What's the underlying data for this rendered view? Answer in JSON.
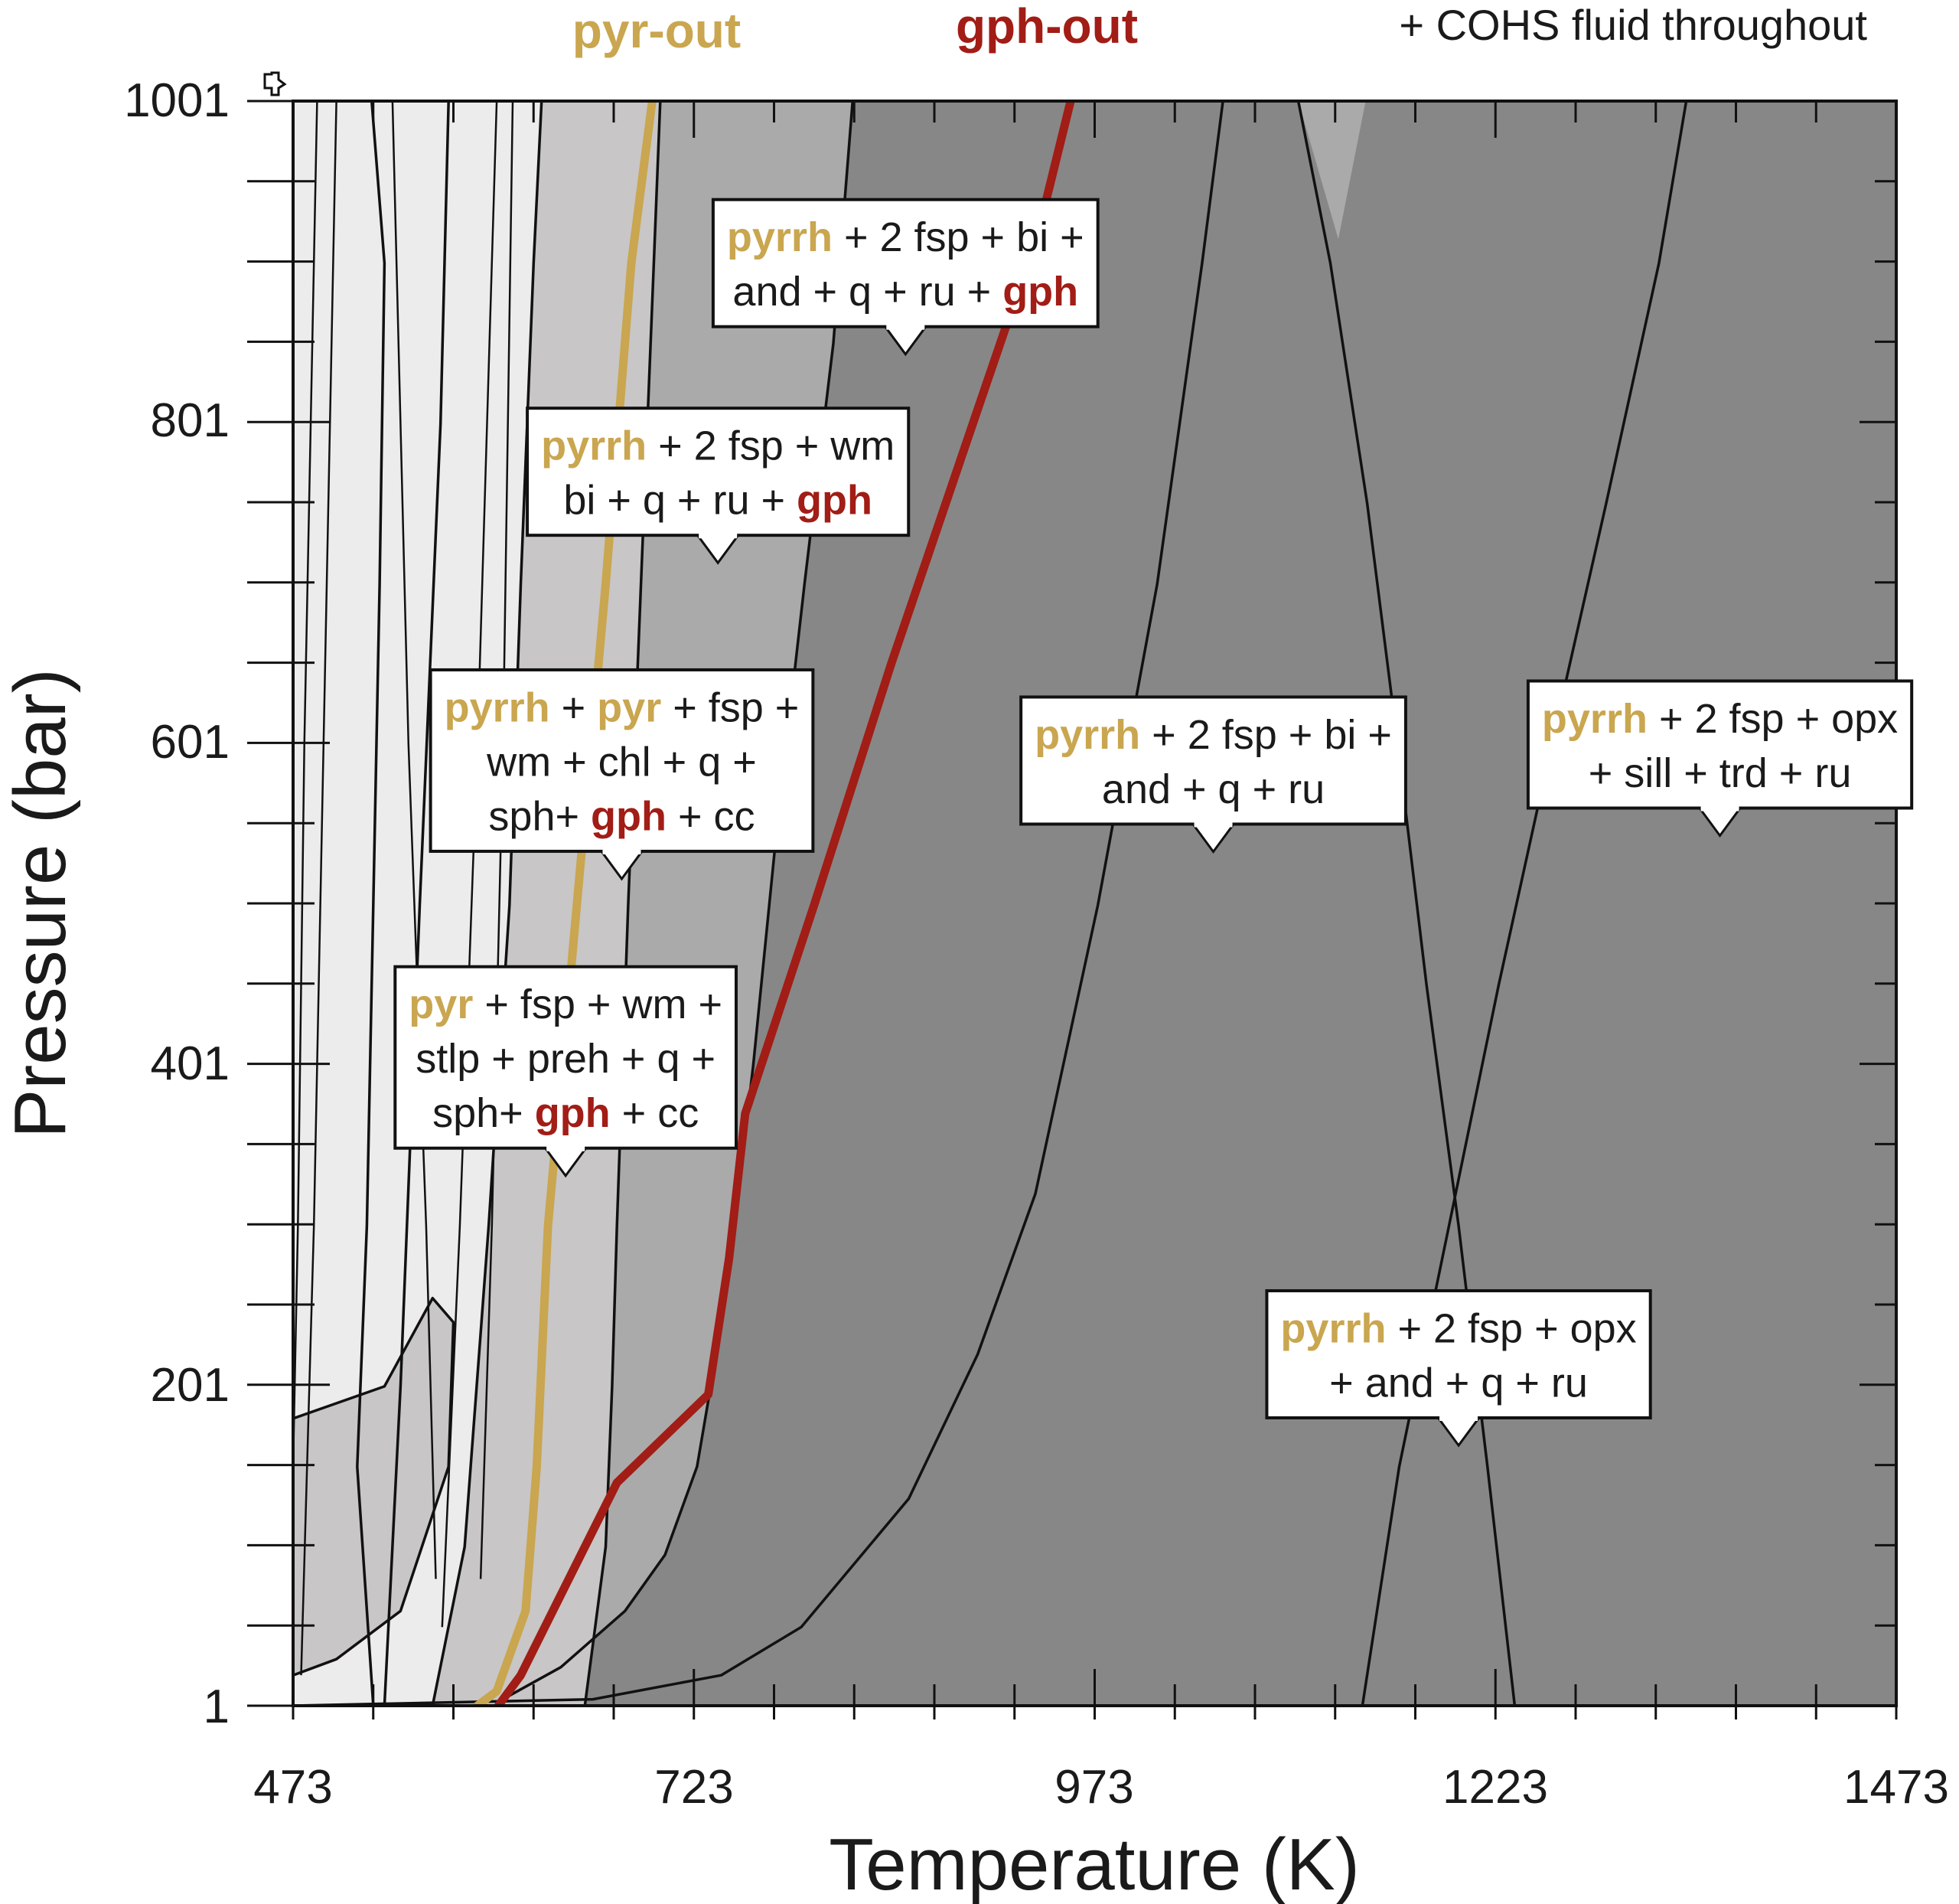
{
  "colors": {
    "pyrite": "#c9a64f",
    "graphite": "#a11d16",
    "field_light": "#ececec",
    "field_mid": "#c8c6c6",
    "field_midgray": "#aaaaaa",
    "field_dark": "#878787",
    "line": "#111111"
  },
  "top_note": "+ COHS fluid throughout",
  "chart_data": {
    "type": "phase-diagram",
    "title": "",
    "xlabel": "Temperature (K)",
    "ylabel": "Pressure (bar)",
    "xlim": [
      473,
      1473
    ],
    "ylim": [
      1,
      1001
    ],
    "xticks": [
      "473",
      "723",
      "973",
      "1223",
      "1473"
    ],
    "yticks": [
      "1",
      "201",
      "401",
      "601",
      "801",
      "1001"
    ],
    "grid": false,
    "series": [
      {
        "name": "pyr-out",
        "color": "#c9a64f",
        "points": [
          [
            588,
            1
          ],
          [
            600,
            10
          ],
          [
            618,
            60
          ],
          [
            625,
            150
          ],
          [
            632,
            300
          ],
          [
            650,
            500
          ],
          [
            668,
            700
          ],
          [
            684,
            900
          ],
          [
            697,
            1001
          ]
        ]
      },
      {
        "name": "gph-out",
        "color": "#a11d16",
        "points": [
          [
            601,
            1
          ],
          [
            615,
            20
          ],
          [
            645,
            80
          ],
          [
            675,
            140
          ],
          [
            732,
            195
          ],
          [
            745,
            280
          ],
          [
            755,
            370
          ],
          [
            798,
            500
          ],
          [
            846,
            650
          ],
          [
            897,
            800
          ],
          [
            938,
            920
          ],
          [
            958,
            1001
          ]
        ]
      }
    ],
    "boundaries": [
      {
        "points": [
          [
            473,
            1
          ],
          [
            660,
            5
          ],
          [
            740,
            20
          ],
          [
            790,
            50
          ],
          [
            857,
            130
          ],
          [
            900,
            220
          ],
          [
            936,
            320
          ],
          [
            975,
            500
          ],
          [
            1012,
            700
          ],
          [
            1040,
            900
          ],
          [
            1053,
            1001
          ]
        ]
      },
      {
        "points": [
          [
            602,
            4
          ],
          [
            640,
            25
          ],
          [
            680,
            60
          ],
          [
            705,
            95
          ],
          [
            725,
            150
          ],
          [
            742,
            250
          ],
          [
            760,
            400
          ],
          [
            775,
            550
          ],
          [
            792,
            700
          ],
          [
            810,
            850
          ],
          [
            822,
            1001
          ]
        ]
      },
      {
        "points": [
          [
            1140,
            1
          ],
          [
            1163,
            150
          ],
          [
            1194,
            300
          ],
          [
            1225,
            450
          ],
          [
            1258,
            600
          ],
          [
            1292,
            750
          ],
          [
            1325,
            900
          ],
          [
            1342,
            1001
          ]
        ]
      },
      {
        "points": [
          [
            1235,
            1
          ],
          [
            1218,
            150
          ],
          [
            1200,
            300
          ],
          [
            1180,
            450
          ],
          [
            1162,
            600
          ],
          [
            1143,
            750
          ],
          [
            1120,
            900
          ],
          [
            1100,
            1001
          ]
        ]
      },
      {
        "points": [
          [
            655,
            1
          ],
          [
            668,
            100
          ],
          [
            672,
            200
          ],
          [
            675,
            300
          ],
          [
            682,
            500
          ],
          [
            690,
            700
          ],
          [
            698,
            900
          ],
          [
            702,
            1001
          ]
        ]
      },
      {
        "points": [
          [
            560,
            1
          ],
          [
            580,
            100
          ],
          [
            595,
            300
          ],
          [
            608,
            500
          ],
          [
            615,
            700
          ],
          [
            623,
            900
          ],
          [
            628,
            1001
          ]
        ]
      },
      {
        "points": [
          [
            530,
            1
          ],
          [
            540,
            200
          ],
          [
            552,
            500
          ],
          [
            565,
            800
          ],
          [
            570,
            1001
          ]
        ]
      },
      {
        "points": [
          [
            523,
            1
          ],
          [
            513,
            150
          ],
          [
            519,
            300
          ],
          [
            523,
            500
          ],
          [
            527,
            700
          ],
          [
            530,
            900
          ],
          [
            522,
            1001
          ]
        ]
      },
      {
        "points": [
          [
            473,
            180
          ],
          [
            530,
            200
          ],
          [
            560,
            255
          ],
          [
            573,
            240
          ],
          [
            570,
            150
          ],
          [
            540,
            60
          ],
          [
            500,
            30
          ],
          [
            473,
            20
          ]
        ]
      }
    ],
    "field_labels": [
      {
        "x": 855,
        "y": 900,
        "lines": [
          [
            {
              "t": "pyrrh",
              "hl": "pyrite"
            },
            {
              "t": " + 2 fsp + bi +"
            }
          ],
          [
            {
              "t": "and + q + ru + "
            },
            {
              "t": "gph",
              "hl": "graphite"
            }
          ]
        ]
      },
      {
        "x": 738,
        "y": 770,
        "lines": [
          [
            {
              "t": "pyrrh",
              "hl": "pyrite"
            },
            {
              "t": " + 2 fsp + wm"
            }
          ],
          [
            {
              "t": "bi + q + ru + "
            },
            {
              "t": "gph",
              "hl": "graphite"
            }
          ]
        ]
      },
      {
        "x": 678,
        "y": 590,
        "lines": [
          [
            {
              "t": "pyrrh",
              "hl": "pyrite"
            },
            {
              "t": " + "
            },
            {
              "t": "pyr",
              "hl": "pyrite"
            },
            {
              "t": " + fsp +"
            }
          ],
          [
            {
              "t": "wm + chl + q +"
            }
          ],
          [
            {
              "t": "sph+ "
            },
            {
              "t": "gph",
              "hl": "graphite"
            },
            {
              "t": " + cc"
            }
          ]
        ]
      },
      {
        "x": 643,
        "y": 405,
        "lines": [
          [
            {
              "t": "pyr",
              "hl": "pyrite"
            },
            {
              "t": " + fsp + wm +"
            }
          ],
          [
            {
              "t": "stlp + preh + q +"
            }
          ],
          [
            {
              "t": "sph+ "
            },
            {
              "t": "gph",
              "hl": "graphite"
            },
            {
              "t": " + cc"
            }
          ]
        ]
      },
      {
        "x": 1047,
        "y": 590,
        "lines": [
          [
            {
              "t": "pyrrh",
              "hl": "pyrite"
            },
            {
              "t": " + 2 fsp + bi +"
            }
          ],
          [
            {
              "t": "and + q + ru"
            }
          ]
        ]
      },
      {
        "x": 1363,
        "y": 600,
        "lines": [
          [
            {
              "t": "pyrrh",
              "hl": "pyrite"
            },
            {
              "t": " + 2 fsp + opx"
            }
          ],
          [
            {
              "t": "+ sill + trd + ru"
            }
          ]
        ]
      },
      {
        "x": 1200,
        "y": 220,
        "lines": [
          [
            {
              "t": "pyrrh",
              "hl": "pyrite"
            },
            {
              "t": " + 2 fsp + opx"
            }
          ],
          [
            {
              "t": "+ and + q + ru"
            }
          ]
        ]
      }
    ]
  }
}
